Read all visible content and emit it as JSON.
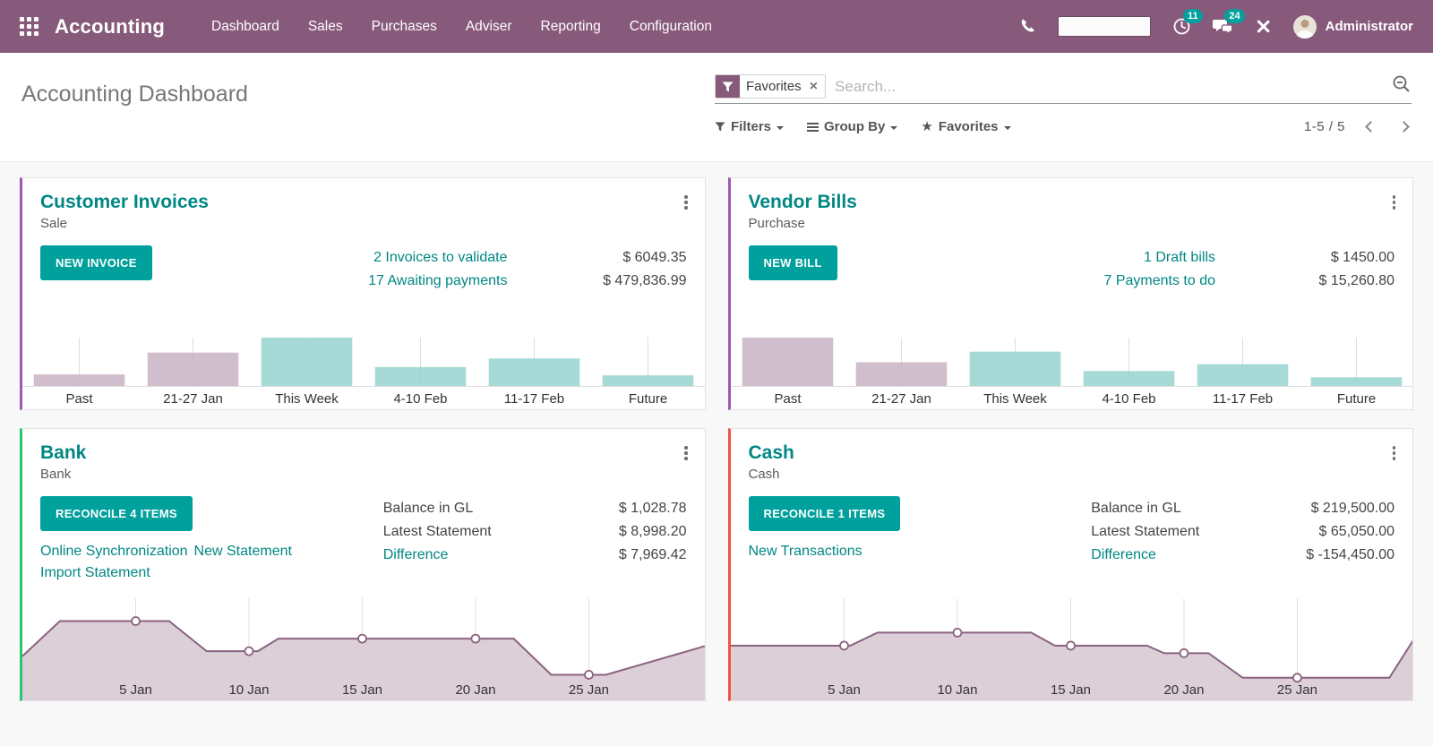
{
  "colors": {
    "topbar_bg": "#875A7B",
    "accent_teal": "#00A09D",
    "title_teal": "#008784",
    "badge_teal": "#00A09D",
    "page_bg": "#f8f8f8"
  },
  "nav": {
    "app_name": "Accounting",
    "items": [
      {
        "label": "Dashboard"
      },
      {
        "label": "Sales"
      },
      {
        "label": "Purchases"
      },
      {
        "label": "Adviser"
      },
      {
        "label": "Reporting"
      },
      {
        "label": "Configuration"
      }
    ],
    "activity_badge": "11",
    "message_badge": "24",
    "user_name": "Administrator"
  },
  "control_panel": {
    "page_title": "Accounting Dashboard",
    "search": {
      "facet_label": "Favorites",
      "facet_remove": "×",
      "placeholder": "Search..."
    },
    "filters_label": "Filters",
    "group_by_label": "Group By",
    "favorites_label": "Favorites",
    "pager": {
      "range": "1-5 / 5"
    }
  },
  "cards": [
    {
      "title": "Customer Invoices",
      "subtitle": "Sale",
      "accent_color": "#9B59B6",
      "button_label": "NEW INVOICE",
      "figures": [
        {
          "label": "2 Invoices to validate",
          "amount": "$ 6049.35"
        },
        {
          "label": "17 Awaiting payments",
          "amount": "$ 479,836.99"
        }
      ]
    },
    {
      "title": "Vendor Bills",
      "subtitle": "Purchase",
      "accent_color": "#9B59B6",
      "button_label": "NEW BILL",
      "figures": [
        {
          "label": "1 Draft bills",
          "amount": "$ 1450.00"
        },
        {
          "label": "7 Payments to do",
          "amount": "$ 15,260.80"
        }
      ]
    },
    {
      "title": "Bank",
      "subtitle": "Bank",
      "accent_color": "#28C76F",
      "button_label": "RECONCILE 4 ITEMS",
      "links": [
        {
          "label": "Online Synchronization"
        },
        {
          "label": "New Statement"
        },
        {
          "label": "Import Statement"
        }
      ],
      "stats": [
        {
          "label": "Balance in GL",
          "value": "$ 1,028.78"
        },
        {
          "label": "Latest Statement",
          "value": "$ 8,998.20"
        },
        {
          "label": "Difference",
          "value": "$ 7,969.42"
        }
      ]
    },
    {
      "title": "Cash",
      "subtitle": "Cash",
      "accent_color": "#EF5442",
      "button_label": "RECONCILE 1 ITEMS",
      "links": [
        {
          "label": "New Transactions"
        }
      ],
      "stats": [
        {
          "label": "Balance in GL",
          "value": "$ 219,500.00"
        },
        {
          "label": "Latest Statement",
          "value": "$ 65,050.00"
        },
        {
          "label": "Difference",
          "value": "$ -154,450.00"
        }
      ]
    }
  ],
  "chart_data": [
    {
      "id": "customer-invoices-weekly",
      "type": "bar",
      "categories": [
        "Past",
        "21-27 Jan",
        "This Week",
        "4-10 Feb",
        "11-17 Feb",
        "Future"
      ],
      "values": [
        0.24,
        0.69,
        1.0,
        0.39,
        0.57,
        0.22
      ],
      "unit": "relative height (no y-axis shown)",
      "bar_colors": [
        "#C9B5C6",
        "#C9B5C6",
        "#98D5D1",
        "#98D5D1",
        "#98D5D1",
        "#98D5D1"
      ],
      "gridline_color": "#dedede",
      "baseline_color": "#dddddd",
      "grid": "vertical ticks only",
      "legend": "none"
    },
    {
      "id": "vendor-bills-weekly",
      "type": "bar",
      "categories": [
        "Past",
        "21-27 Jan",
        "This Week",
        "4-10 Feb",
        "11-17 Feb",
        "Future"
      ],
      "values": [
        1.0,
        0.49,
        0.71,
        0.31,
        0.45,
        0.18
      ],
      "unit": "relative height (no y-axis shown)",
      "bar_colors": [
        "#C9B5C6",
        "#C9B5C6",
        "#98D5D1",
        "#98D5D1",
        "#98D5D1",
        "#98D5D1"
      ],
      "gridline_color": "#dedede",
      "baseline_color": "#dddddd",
      "grid": "vertical ticks only",
      "legend": "none"
    },
    {
      "id": "bank-balance-january",
      "type": "area",
      "x_ticks": [
        {
          "pos": 0.166,
          "label": "5 Jan"
        },
        {
          "pos": 0.332,
          "label": "10 Jan"
        },
        {
          "pos": 0.498,
          "label": "15 Jan"
        },
        {
          "pos": 0.664,
          "label": "20 Jan"
        },
        {
          "pos": 0.83,
          "label": "25 Jan"
        }
      ],
      "points": [
        [
          0,
          0.44
        ],
        [
          0.055,
          0.79
        ],
        [
          0.215,
          0.79
        ],
        [
          0.27,
          0.49
        ],
        [
          0.345,
          0.49
        ],
        [
          0.375,
          0.615
        ],
        [
          0.72,
          0.615
        ],
        [
          0.775,
          0.255
        ],
        [
          0.855,
          0.255
        ],
        [
          1,
          0.54
        ]
      ],
      "markers": [
        [
          0.166,
          0.79
        ],
        [
          0.332,
          0.49
        ],
        [
          0.498,
          0.615
        ],
        [
          0.664,
          0.615
        ],
        [
          0.83,
          0.255
        ]
      ],
      "unit": "relative height (no y-axis shown)",
      "line_color": "#8A6380",
      "fill_color": "#D9CBD5",
      "marker_fill": "#ffffff",
      "gridline_color": "#e0e0e0",
      "grid": "vertical ticks only",
      "legend": "none"
    },
    {
      "id": "cash-balance-january",
      "type": "area",
      "x_ticks": [
        {
          "pos": 0.166,
          "label": "5 Jan"
        },
        {
          "pos": 0.332,
          "label": "10 Jan"
        },
        {
          "pos": 0.498,
          "label": "15 Jan"
        },
        {
          "pos": 0.664,
          "label": "20 Jan"
        },
        {
          "pos": 0.83,
          "label": "25 Jan"
        }
      ],
      "points": [
        [
          0,
          0.545
        ],
        [
          0.175,
          0.545
        ],
        [
          0.215,
          0.675
        ],
        [
          0.44,
          0.675
        ],
        [
          0.475,
          0.545
        ],
        [
          0.61,
          0.545
        ],
        [
          0.635,
          0.47
        ],
        [
          0.7,
          0.47
        ],
        [
          0.75,
          0.225
        ],
        [
          0.965,
          0.225
        ],
        [
          1,
          0.6
        ]
      ],
      "markers": [
        [
          0.166,
          0.545
        ],
        [
          0.332,
          0.675
        ],
        [
          0.498,
          0.545
        ],
        [
          0.664,
          0.47
        ],
        [
          0.83,
          0.225
        ]
      ],
      "unit": "relative height (no y-axis shown)",
      "line_color": "#8A6380",
      "fill_color": "#D9CBD5",
      "marker_fill": "#ffffff",
      "gridline_color": "#e0e0e0",
      "grid": "vertical ticks only",
      "legend": "none"
    }
  ]
}
